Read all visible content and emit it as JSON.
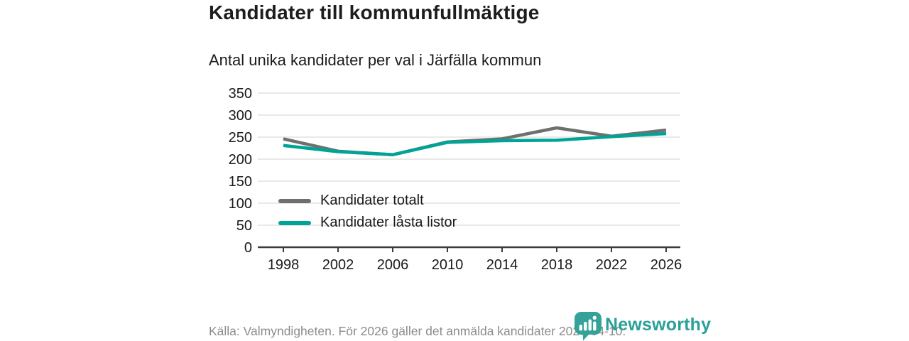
{
  "header": {
    "title": "Kandidater till kommunfullmäktige",
    "subtitle": "Antal unika kandidater per val i Järfälla kommun"
  },
  "chart_data": {
    "type": "line",
    "x": [
      1998,
      2002,
      2006,
      2010,
      2014,
      2018,
      2022,
      2026
    ],
    "series": [
      {
        "name": "Kandidater totalt",
        "color": "#6f6f6f",
        "values": [
          246,
          218,
          210,
          239,
          246,
          271,
          252,
          266
        ]
      },
      {
        "name": "Kandidater låsta listor",
        "color": "#00a496",
        "values": [
          231,
          217,
          210,
          238,
          242,
          243,
          251,
          258
        ]
      }
    ],
    "ylim": [
      0,
      350
    ],
    "yticks": [
      0,
      50,
      100,
      150,
      200,
      250,
      300,
      350
    ],
    "grid": true,
    "legend_position": "inside-bottom-left",
    "gridline_color": "#e2e2e2",
    "axis_color": "#3b3b3b",
    "tick_label_color": "#1a1a1a"
  },
  "footer": {
    "source": "Källa: Valmyndigheten. För 2026 gäller det anmälda kandidater 2026-04-10."
  },
  "branding": {
    "logo_text": "Newsworthy",
    "logo_color": "#2aa098",
    "logo_icon_color": "#35a29a",
    "logo_icon": "newsworthy-chart-bubble-icon"
  }
}
